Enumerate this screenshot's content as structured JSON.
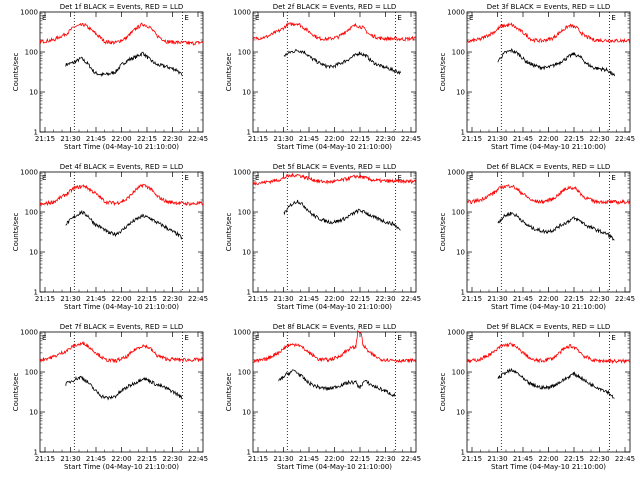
{
  "colors": {
    "events": "#000000",
    "lld": "#ff0000",
    "axis": "#000000"
  },
  "shared": {
    "x_tick_labels": [
      "21:15",
      "21:30",
      "21:45",
      "22:00",
      "22:15",
      "22:30",
      "22:45"
    ],
    "y_tick_labels": [
      "1",
      "10",
      "100",
      "1000"
    ],
    "ylabel": "Counts/sec",
    "xlabel": "Start Time (04-May-10 21:10:00)",
    "marker_left": "E",
    "marker_right": "E"
  },
  "chart_data": [
    {
      "type": "line",
      "title": "Det 1f BLACK = Events, RED = LLD",
      "xlim": [
        0,
        95
      ],
      "ylim": [
        1,
        1000
      ],
      "y_scale": "log",
      "vlines": [
        20,
        83
      ],
      "series": [
        {
          "name": "Events",
          "color": "#000000",
          "x": [
            15,
            20,
            24,
            28,
            32,
            36,
            40,
            44,
            48,
            52,
            56,
            60,
            64,
            68,
            72,
            76,
            80,
            83
          ],
          "y": [
            48,
            55,
            70,
            50,
            30,
            27,
            28,
            32,
            50,
            65,
            75,
            95,
            65,
            48,
            45,
            40,
            35,
            25
          ]
        },
        {
          "name": "LLD",
          "color": "#ff0000",
          "x": [
            0,
            8,
            16,
            20,
            26,
            32,
            38,
            44,
            50,
            56,
            60,
            64,
            68,
            74,
            80,
            88,
            95
          ],
          "y": [
            180,
            200,
            300,
            430,
            480,
            300,
            180,
            170,
            220,
            390,
            500,
            420,
            260,
            180,
            175,
            165,
            175
          ]
        }
      ]
    },
    {
      "type": "line",
      "title": "Det 2f BLACK = Events, RED = LLD",
      "xlim": [
        0,
        95
      ],
      "ylim": [
        1,
        1000
      ],
      "y_scale": "log",
      "vlines": [
        20,
        83
      ],
      "series": [
        {
          "name": "Events",
          "color": "#000000",
          "x": [
            18,
            22,
            26,
            30,
            34,
            38,
            42,
            46,
            50,
            54,
            58,
            62,
            66,
            70,
            74,
            78,
            82,
            86
          ],
          "y": [
            80,
            100,
            110,
            100,
            70,
            55,
            45,
            42,
            50,
            60,
            75,
            95,
            80,
            55,
            45,
            40,
            35,
            30
          ]
        },
        {
          "name": "LLD",
          "color": "#ff0000",
          "x": [
            0,
            8,
            16,
            20,
            26,
            32,
            38,
            44,
            50,
            56,
            60,
            64,
            68,
            74,
            80,
            88,
            95
          ],
          "y": [
            210,
            240,
            350,
            480,
            520,
            340,
            220,
            210,
            240,
            380,
            470,
            410,
            270,
            220,
            215,
            210,
            220
          ]
        }
      ]
    },
    {
      "type": "line",
      "title": "Det 3f BLACK = Events, RED = LLD",
      "xlim": [
        0,
        95
      ],
      "ylim": [
        1,
        1000
      ],
      "y_scale": "log",
      "vlines": [
        20,
        83
      ],
      "series": [
        {
          "name": "Events",
          "color": "#000000",
          "x": [
            18,
            22,
            26,
            30,
            34,
            38,
            42,
            46,
            50,
            54,
            58,
            62,
            66,
            70,
            74,
            78,
            82,
            86
          ],
          "y": [
            60,
            95,
            110,
            90,
            60,
            48,
            42,
            40,
            45,
            55,
            70,
            90,
            75,
            50,
            40,
            38,
            35,
            25
          ]
        },
        {
          "name": "LLD",
          "color": "#ff0000",
          "x": [
            0,
            8,
            16,
            20,
            26,
            32,
            38,
            44,
            50,
            56,
            60,
            64,
            68,
            74,
            80,
            88,
            95
          ],
          "y": [
            180,
            210,
            320,
            440,
            480,
            320,
            200,
            190,
            220,
            360,
            460,
            400,
            260,
            200,
            195,
            190,
            195
          ]
        }
      ]
    },
    {
      "type": "line",
      "title": "Det 4f BLACK = Events, RED = LLD",
      "xlim": [
        0,
        95
      ],
      "ylim": [
        1,
        1000
      ],
      "y_scale": "log",
      "vlines": [
        20,
        83
      ],
      "series": [
        {
          "name": "Events",
          "color": "#000000",
          "x": [
            15,
            20,
            24,
            28,
            32,
            36,
            40,
            44,
            48,
            52,
            56,
            60,
            64,
            68,
            72,
            76,
            80,
            83
          ],
          "y": [
            50,
            75,
            100,
            80,
            50,
            40,
            30,
            28,
            35,
            50,
            65,
            80,
            70,
            55,
            45,
            35,
            28,
            22
          ]
        },
        {
          "name": "LLD",
          "color": "#ff0000",
          "x": [
            0,
            8,
            16,
            20,
            26,
            32,
            38,
            44,
            50,
            56,
            60,
            64,
            68,
            74,
            80,
            88,
            95
          ],
          "y": [
            150,
            180,
            290,
            400,
            450,
            300,
            180,
            165,
            200,
            360,
            480,
            400,
            250,
            180,
            170,
            160,
            165
          ]
        }
      ]
    },
    {
      "type": "line",
      "title": "Det 5f BLACK = Events, RED = LLD",
      "xlim": [
        0,
        95
      ],
      "ylim": [
        1,
        1000
      ],
      "y_scale": "log",
      "vlines": [
        20,
        83
      ],
      "series": [
        {
          "name": "Events",
          "color": "#000000",
          "x": [
            18,
            22,
            26,
            30,
            34,
            38,
            42,
            46,
            50,
            54,
            58,
            62,
            66,
            70,
            74,
            78,
            82,
            86
          ],
          "y": [
            90,
            150,
            190,
            140,
            90,
            70,
            60,
            55,
            60,
            70,
            90,
            110,
            95,
            75,
            65,
            55,
            50,
            35
          ]
        },
        {
          "name": "LLD",
          "color": "#ff0000",
          "x": [
            0,
            8,
            16,
            20,
            26,
            32,
            38,
            44,
            50,
            56,
            60,
            64,
            68,
            74,
            80,
            88,
            95
          ],
          "y": [
            520,
            560,
            650,
            780,
            850,
            700,
            590,
            560,
            600,
            700,
            780,
            750,
            650,
            600,
            590,
            580,
            590
          ]
        }
      ]
    },
    {
      "type": "line",
      "title": "Det 6f BLACK = Events, RED = LLD",
      "xlim": [
        0,
        95
      ],
      "ylim": [
        1,
        1000
      ],
      "y_scale": "log",
      "vlines": [
        20,
        83
      ],
      "series": [
        {
          "name": "Events",
          "color": "#000000",
          "x": [
            18,
            22,
            26,
            30,
            34,
            38,
            42,
            46,
            50,
            54,
            58,
            62,
            66,
            70,
            74,
            78,
            82,
            86
          ],
          "y": [
            55,
            80,
            95,
            75,
            50,
            40,
            35,
            32,
            35,
            45,
            55,
            70,
            60,
            45,
            38,
            32,
            28,
            20
          ]
        },
        {
          "name": "LLD",
          "color": "#ff0000",
          "x": [
            0,
            8,
            16,
            20,
            26,
            32,
            38,
            44,
            50,
            56,
            60,
            64,
            68,
            74,
            80,
            88,
            95
          ],
          "y": [
            170,
            200,
            310,
            420,
            460,
            300,
            190,
            180,
            210,
            340,
            420,
            370,
            240,
            185,
            180,
            175,
            180
          ]
        }
      ]
    },
    {
      "type": "line",
      "title": "Det 7f BLACK = Events, RED = LLD",
      "xlim": [
        0,
        95
      ],
      "ylim": [
        1,
        1000
      ],
      "y_scale": "log",
      "vlines": [
        20,
        83
      ],
      "series": [
        {
          "name": "Events",
          "color": "#000000",
          "x": [
            15,
            20,
            24,
            28,
            32,
            36,
            40,
            44,
            48,
            52,
            56,
            60,
            64,
            68,
            72,
            76,
            80,
            83
          ],
          "y": [
            50,
            65,
            75,
            55,
            35,
            25,
            22,
            25,
            35,
            45,
            55,
            70,
            60,
            48,
            42,
            35,
            28,
            22
          ]
        },
        {
          "name": "LLD",
          "color": "#ff0000",
          "x": [
            0,
            8,
            16,
            20,
            26,
            32,
            38,
            44,
            50,
            56,
            60,
            64,
            68,
            74,
            80,
            88,
            95
          ],
          "y": [
            200,
            240,
            350,
            460,
            520,
            320,
            200,
            190,
            230,
            380,
            460,
            400,
            260,
            210,
            205,
            200,
            205
          ]
        }
      ]
    },
    {
      "type": "line",
      "title": "Det 8f BLACK = Events, RED = LLD",
      "xlim": [
        0,
        95
      ],
      "ylim": [
        1,
        1000
      ],
      "y_scale": "log",
      "vlines": [
        20,
        83
      ],
      "series": [
        {
          "name": "Events",
          "color": "#000000",
          "x": [
            15,
            20,
            24,
            28,
            32,
            36,
            40,
            44,
            48,
            52,
            56,
            60,
            62,
            65,
            70,
            74,
            78,
            83
          ],
          "y": [
            60,
            90,
            110,
            80,
            55,
            45,
            40,
            38,
            42,
            48,
            55,
            55,
            40,
            60,
            45,
            38,
            32,
            25
          ]
        },
        {
          "name": "LLD",
          "color": "#ff0000",
          "x": [
            0,
            8,
            16,
            20,
            26,
            32,
            38,
            44,
            50,
            56,
            60,
            61,
            63,
            64,
            68,
            74,
            80,
            88,
            95
          ],
          "y": [
            180,
            210,
            330,
            460,
            500,
            320,
            210,
            200,
            240,
            380,
            430,
            1000,
            1000,
            480,
            300,
            210,
            200,
            190,
            195
          ]
        }
      ]
    },
    {
      "type": "line",
      "title": "Det 9f BLACK = Events, RED = LLD",
      "xlim": [
        0,
        95
      ],
      "ylim": [
        1,
        1000
      ],
      "y_scale": "log",
      "vlines": [
        20,
        83
      ],
      "series": [
        {
          "name": "Events",
          "color": "#000000",
          "x": [
            18,
            22,
            26,
            30,
            34,
            38,
            42,
            46,
            50,
            54,
            58,
            62,
            66,
            70,
            74,
            78,
            82,
            86
          ],
          "y": [
            70,
            95,
            110,
            90,
            60,
            48,
            42,
            40,
            45,
            55,
            70,
            90,
            75,
            55,
            45,
            38,
            32,
            22
          ]
        },
        {
          "name": "LLD",
          "color": "#ff0000",
          "x": [
            0,
            8,
            16,
            20,
            26,
            32,
            38,
            44,
            50,
            56,
            60,
            64,
            68,
            74,
            80,
            88,
            95
          ],
          "y": [
            180,
            210,
            320,
            450,
            500,
            320,
            200,
            190,
            220,
            360,
            450,
            390,
            250,
            195,
            190,
            185,
            190
          ]
        }
      ]
    }
  ]
}
